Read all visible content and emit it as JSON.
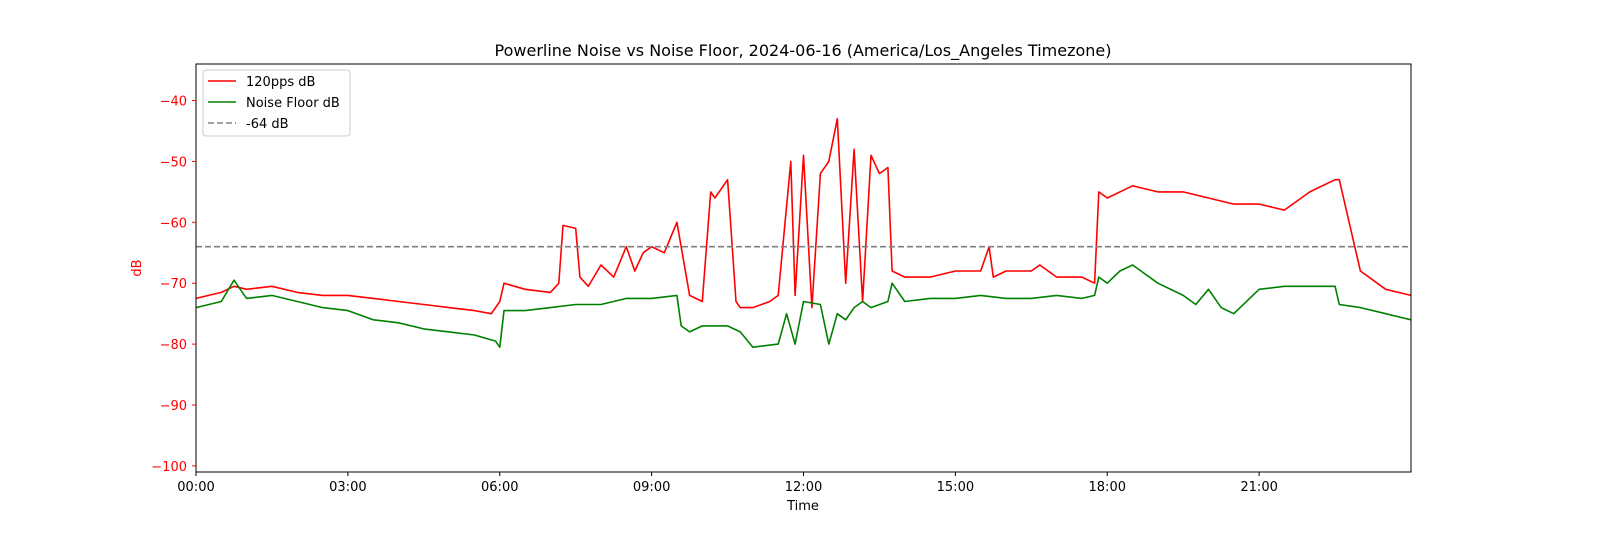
{
  "chart_data": {
    "type": "line",
    "title": "Powerline Noise vs Noise Floor, 2024-06-16 (America/Los_Angeles Timezone)",
    "xlabel": "Time",
    "ylabel": "dB",
    "xlim": [
      "00:00",
      "24:00"
    ],
    "ylim": [
      -101,
      -34
    ],
    "x_ticks": [
      "00:00",
      "03:00",
      "06:00",
      "09:00",
      "12:00",
      "15:00",
      "18:00",
      "21:00"
    ],
    "y_ticks": [
      -40,
      -50,
      -60,
      -70,
      -80,
      -90,
      -100
    ],
    "legend_position": "top-left",
    "grid": false,
    "series": [
      {
        "name": "120pps dB",
        "color": "#ff0000",
        "style": "solid",
        "x": [
          "00:00",
          "00:30",
          "00:45",
          "01:00",
          "01:30",
          "02:00",
          "02:30",
          "03:00",
          "03:30",
          "04:00",
          "04:30",
          "05:00",
          "05:30",
          "05:50",
          "06:00",
          "06:05",
          "06:30",
          "07:00",
          "07:10",
          "07:15",
          "07:30",
          "07:35",
          "07:45",
          "08:00",
          "08:15",
          "08:30",
          "08:40",
          "08:50",
          "09:00",
          "09:15",
          "09:30",
          "09:40",
          "09:45",
          "10:00",
          "10:10",
          "10:15",
          "10:30",
          "10:40",
          "10:45",
          "11:00",
          "11:20",
          "11:30",
          "11:45",
          "11:50",
          "12:00",
          "12:10",
          "12:20",
          "12:30",
          "12:40",
          "12:50",
          "13:00",
          "13:10",
          "13:20",
          "13:30",
          "13:40",
          "13:45",
          "14:00",
          "14:30",
          "15:00",
          "15:30",
          "15:40",
          "15:45",
          "16:00",
          "16:30",
          "16:40",
          "17:00",
          "17:30",
          "17:45",
          "17:50",
          "18:00",
          "18:30",
          "19:00",
          "19:30",
          "20:00",
          "20:30",
          "21:00",
          "21:30",
          "22:00",
          "22:30",
          "22:35",
          "23:00",
          "23:30",
          "24:00"
        ],
        "values": [
          -72.5,
          -71.5,
          -70.5,
          -71,
          -70.5,
          -71.5,
          -72,
          -72,
          -72.5,
          -73,
          -73.5,
          -74,
          -74.5,
          -75,
          -73,
          -70,
          -71,
          -71.5,
          -70,
          -60.5,
          -61,
          -69,
          -70.5,
          -67,
          -69,
          -64,
          -68,
          -65,
          -64,
          -65,
          -60,
          -68,
          -72,
          -73,
          -55,
          -56,
          -53,
          -73,
          -74,
          -74,
          -73,
          -72,
          -50,
          -72,
          -49,
          -74,
          -52,
          -50,
          -43,
          -70,
          -48,
          -73,
          -49,
          -52,
          -51,
          -68,
          -69,
          -69,
          -68,
          -68,
          -64,
          -69,
          -68,
          -68,
          -67,
          -69,
          -69,
          -70,
          -55,
          -56,
          -54,
          -55,
          -55,
          -56,
          -57,
          -57,
          -58,
          -55,
          -53,
          -53,
          -68,
          -71,
          -72
        ]
      },
      {
        "name": "Noise Floor dB",
        "color": "#008000",
        "style": "solid",
        "x": [
          "00:00",
          "00:30",
          "00:45",
          "01:00",
          "01:30",
          "02:00",
          "02:30",
          "03:00",
          "03:30",
          "04:00",
          "04:30",
          "05:00",
          "05:30",
          "05:55",
          "06:00",
          "06:05",
          "06:30",
          "07:00",
          "07:30",
          "08:00",
          "08:30",
          "09:00",
          "09:30",
          "09:35",
          "09:45",
          "10:00",
          "10:30",
          "10:45",
          "11:00",
          "11:30",
          "11:40",
          "11:50",
          "12:00",
          "12:20",
          "12:30",
          "12:40",
          "12:50",
          "13:00",
          "13:10",
          "13:20",
          "13:40",
          "13:45",
          "14:00",
          "14:30",
          "15:00",
          "15:30",
          "16:00",
          "16:30",
          "17:00",
          "17:30",
          "17:45",
          "17:50",
          "18:00",
          "18:15",
          "18:30",
          "19:00",
          "19:30",
          "19:45",
          "20:00",
          "20:15",
          "20:30",
          "21:00",
          "21:30",
          "22:00",
          "22:30",
          "22:35",
          "23:00",
          "23:30",
          "24:00"
        ],
        "values": [
          -74,
          -73,
          -69.5,
          -72.5,
          -72,
          -73,
          -74,
          -74.5,
          -76,
          -76.5,
          -77.5,
          -78,
          -78.5,
          -79.5,
          -80.5,
          -74.5,
          -74.5,
          -74,
          -73.5,
          -73.5,
          -72.5,
          -72.5,
          -72,
          -77,
          -78,
          -77,
          -77,
          -78,
          -80.5,
          -80,
          -75,
          -80,
          -73,
          -73.5,
          -80,
          -75,
          -76,
          -74,
          -73,
          -74,
          -73,
          -70,
          -73,
          -72.5,
          -72.5,
          -72,
          -72.5,
          -72.5,
          -72,
          -72.5,
          -72,
          -69,
          -70,
          -68,
          -67,
          -70,
          -72,
          -73.5,
          -71,
          -74,
          -75,
          -71,
          -70.5,
          -70.5,
          -70.5,
          -73.5,
          -74,
          -75,
          -76
        ]
      },
      {
        "name": "-64 dB",
        "color": "#808080",
        "style": "dashed",
        "x": [
          "00:00",
          "24:00"
        ],
        "values": [
          -64,
          -64
        ]
      }
    ]
  }
}
